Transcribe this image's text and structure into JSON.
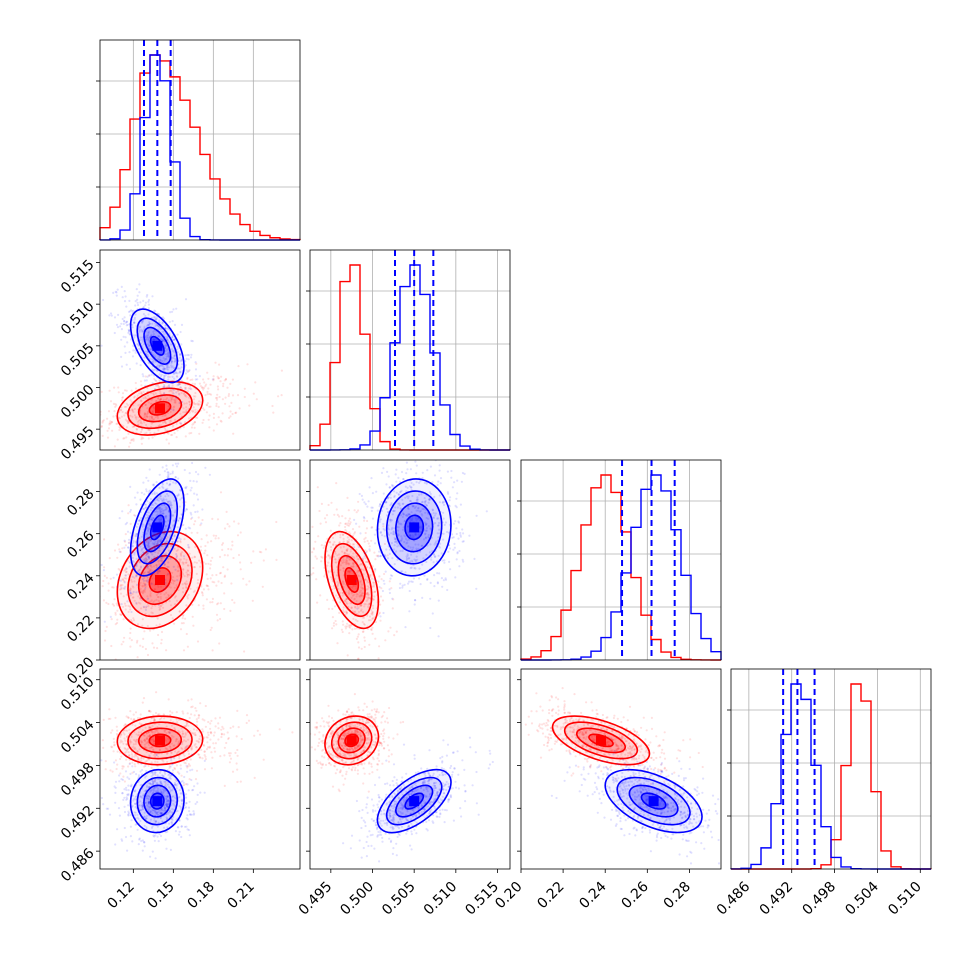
{
  "colors": {
    "red": "#ff0000",
    "blue": "#0000ff",
    "grid": "#b0b0b0",
    "axes": "#000000"
  },
  "chart_data": {
    "type": "corner",
    "params": [
      {
        "range": [
          0.095,
          0.245
        ],
        "ticks": [
          0.12,
          0.15,
          0.18,
          0.21
        ],
        "tick_labels": [
          "0.12",
          "0.15",
          "0.18",
          "0.21"
        ]
      },
      {
        "range": [
          0.4925,
          0.5165
        ],
        "ticks": [
          0.495,
          0.5,
          0.505,
          0.51,
          0.515
        ],
        "tick_labels": [
          "0.495",
          "0.500",
          "0.505",
          "0.510",
          "0.515"
        ]
      },
      {
        "range": [
          0.2,
          0.295
        ],
        "ticks": [
          0.2,
          0.22,
          0.24,
          0.26,
          0.28
        ],
        "tick_labels": [
          "0.20",
          "0.22",
          "0.24",
          "0.26",
          "0.28"
        ]
      },
      {
        "range": [
          0.4835,
          0.5115
        ],
        "ticks": [
          0.486,
          0.492,
          0.498,
          0.504,
          0.51
        ],
        "tick_labels": [
          "0.486",
          "0.492",
          "0.498",
          "0.504",
          "0.510"
        ]
      }
    ],
    "series": [
      {
        "color": "red",
        "mean": [
          0.14,
          0.4975,
          0.238,
          0.5015
        ],
        "std": [
          0.016,
          0.0016,
          0.0115,
          0.0017
        ],
        "skew": [
          true,
          false,
          false,
          false
        ],
        "hist_peak": [
          0.136,
          0.4975,
          0.24,
          0.5015
        ]
      },
      {
        "color": "blue",
        "mean": [
          0.138,
          0.505,
          0.263,
          0.493
        ],
        "std": [
          0.01,
          0.0022,
          0.0115,
          0.0022
        ],
        "skew": [
          false,
          false,
          false,
          false
        ],
        "hist_peak": [
          0.138,
          0.505,
          0.264,
          0.493
        ]
      }
    ],
    "correlations": {
      "red": {
        "0-1": 0.3,
        "0-2": 0.25,
        "0-3": 0.05,
        "1-2": -0.45,
        "1-3": 0.15,
        "2-3": -0.55
      },
      "blue": {
        "0-1": -0.55,
        "0-2": 0.5,
        "0-3": 0.05,
        "1-2": 0.05,
        "1-3": 0.6,
        "2-3": -0.5
      }
    },
    "quantiles_blue": [
      [
        0.128,
        0.138,
        0.148
      ],
      [
        0.5027,
        0.505,
        0.5073
      ],
      [
        0.248,
        0.262,
        0.273
      ],
      [
        0.4908,
        0.4928,
        0.4952
      ]
    ],
    "grid": true
  }
}
